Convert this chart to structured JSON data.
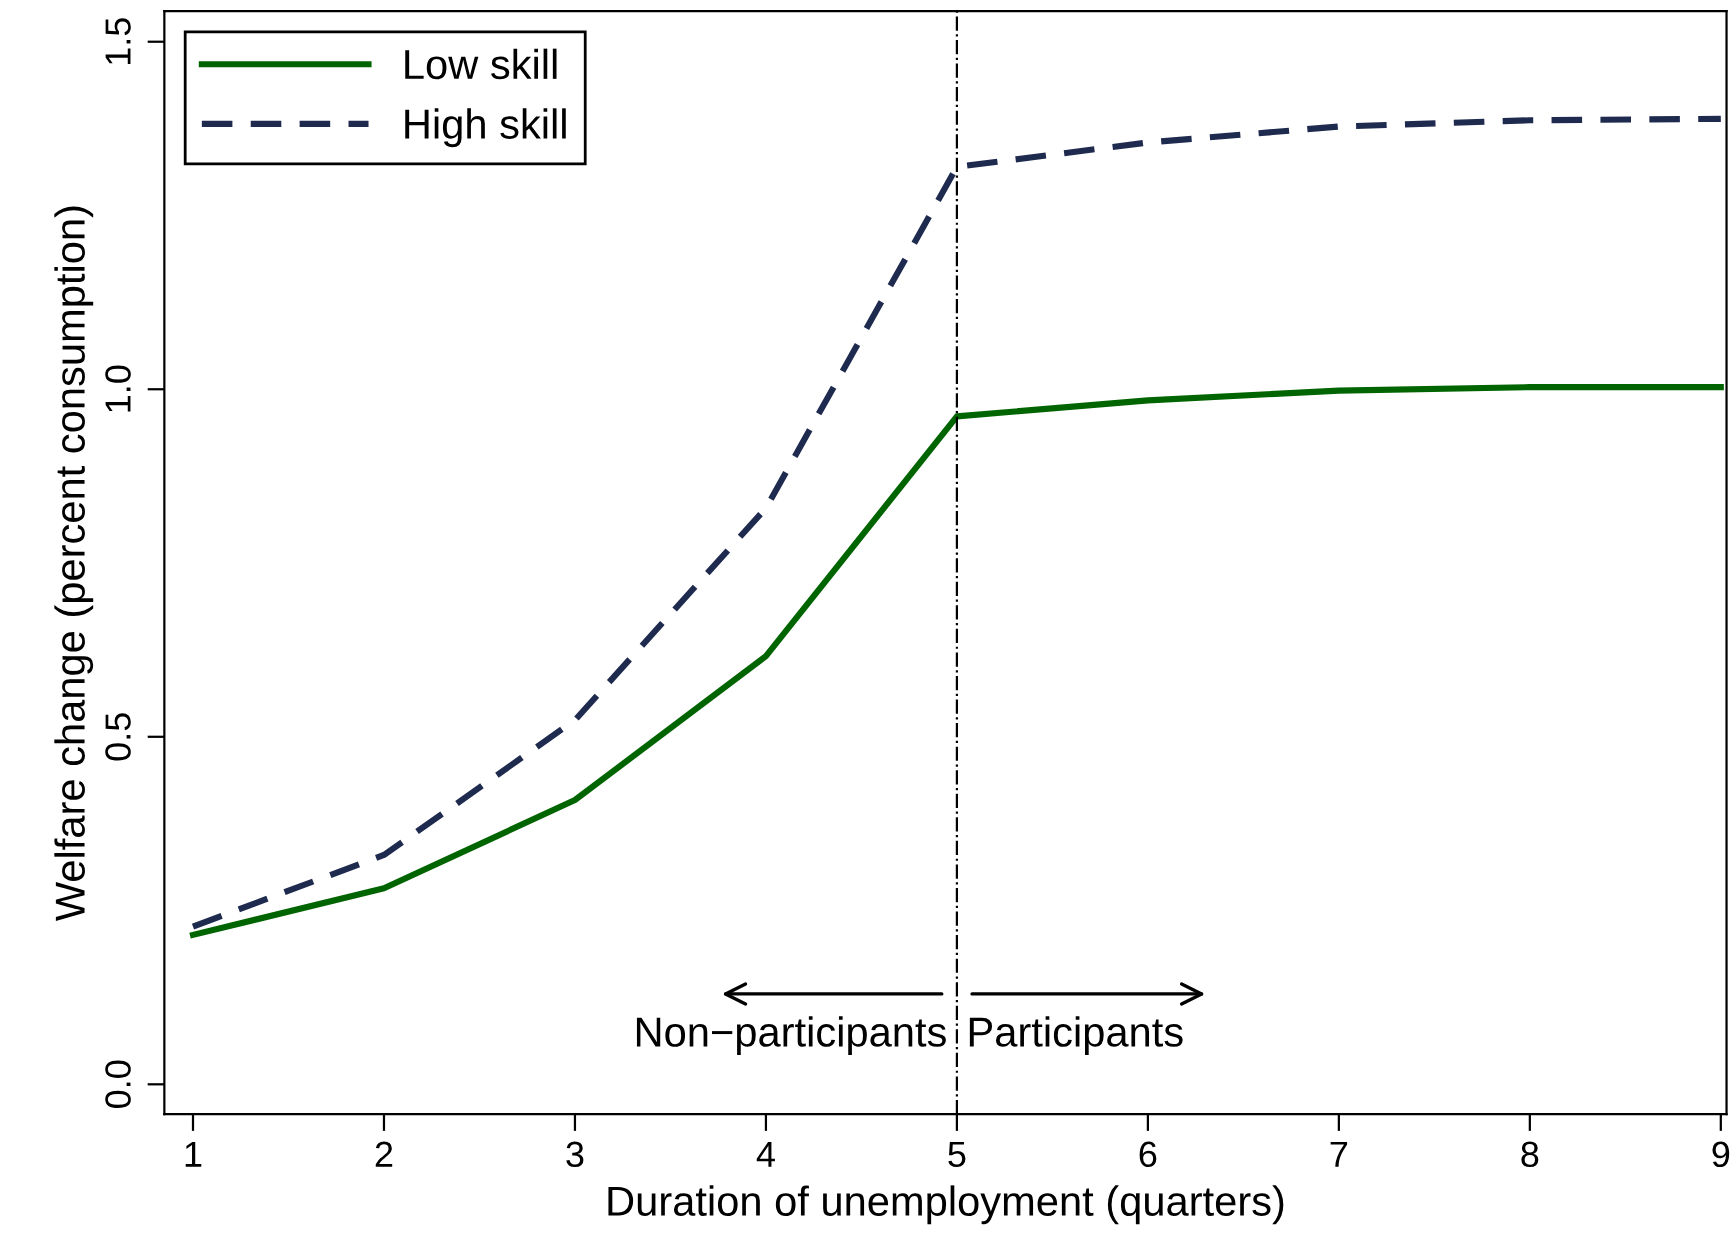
{
  "chart_data": {
    "type": "line",
    "x": [
      1,
      2,
      3,
      4,
      5,
      6,
      7,
      8,
      9
    ],
    "series": [
      {
        "name": "Low skill",
        "color": "#006400",
        "line_style": "solid",
        "values": [
          0.215,
          0.282,
          0.409,
          0.616,
          0.961,
          0.984,
          0.998,
          1.003,
          1.003
        ]
      },
      {
        "name": "High skill",
        "color": "#1f2a4f",
        "line_style": "dashed",
        "values": [
          0.227,
          0.33,
          0.524,
          0.829,
          1.32,
          1.355,
          1.378,
          1.387,
          1.389
        ]
      }
    ],
    "xlabel": "Duration of unemployment (quarters)",
    "ylabel": "Welfare change (percent consumption)",
    "xlim": [
      0.85,
      9.03
    ],
    "ylim": [
      -0.043,
      1.544
    ],
    "xticks": [
      1,
      2,
      3,
      4,
      5,
      6,
      7,
      8,
      9
    ],
    "yticks": [
      {
        "value": 0,
        "label": "0.0"
      },
      {
        "value": 0.5,
        "label": "0.5"
      },
      {
        "value": 1,
        "label": "1.0"
      },
      {
        "value": 1.5,
        "label": "1.5"
      }
    ],
    "ref_lines": [
      {
        "axis": "x",
        "value": 5,
        "color": "#000000",
        "line_style": "dashdot"
      }
    ],
    "annotations": [
      {
        "text": "Non−participants",
        "x": 4.95,
        "y": 0.07
      },
      {
        "text": "Participants",
        "x": 5.05,
        "y": 0.07
      }
    ],
    "legend": "top left",
    "grid": false,
    "marker": "none"
  }
}
